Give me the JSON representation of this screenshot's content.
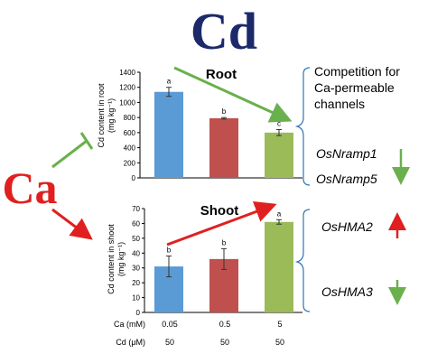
{
  "title": "Cd",
  "ca_label": "Ca",
  "colors": {
    "cd_title": "#1c2a6b",
    "ca_label": "#e02020",
    "blue": "#5b9bd5",
    "red": "#c0504d",
    "green": "#9bbb59",
    "arrow_green": "#6ab04c",
    "arrow_red": "#e02020",
    "brace": "#2e75b6"
  },
  "root_panel": {
    "label": "Root",
    "ylabel_line1": "Cd content in root",
    "ylabel_line2": "(mg kg⁻¹)"
  },
  "shoot_panel": {
    "label": "Shoot",
    "ylabel_line1": "Cd content in shoot",
    "ylabel_line2": "(mg kg⁻¹)"
  },
  "conditions": {
    "ca_label": "Ca (mM)",
    "cd_label": "Cd (μM)",
    "ca_values": [
      "0.05",
      "0.5",
      "5"
    ],
    "cd_values": [
      "50",
      "50",
      "50"
    ]
  },
  "annotations": {
    "competition_line1": "Competition for",
    "competition_line2": "Ca-permeable",
    "competition_line3": "channels",
    "gene1": "OsNramp1",
    "gene1_dir": "down",
    "gene2": "OsNramp5",
    "gene2_dir": "down",
    "gene3": "OsHMA2",
    "gene3_dir": "up",
    "gene4": "OsHMA3",
    "gene4_dir": "down"
  },
  "chart_data": [
    {
      "type": "bar",
      "title": "Root",
      "ylabel": "Cd content in root (mg kg⁻¹)",
      "categories": [
        "0.05",
        "0.5",
        "5"
      ],
      "values": [
        1140,
        790,
        600
      ],
      "errors": [
        60,
        10,
        40
      ],
      "letters": [
        "a",
        "b",
        "c"
      ],
      "ylim": [
        0,
        1400
      ],
      "yticks": [
        0,
        200,
        400,
        600,
        800,
        1000,
        1200,
        1400
      ],
      "colors": [
        "#5b9bd5",
        "#c0504d",
        "#9bbb59"
      ]
    },
    {
      "type": "bar",
      "title": "Shoot",
      "ylabel": "Cd content in shoot (mg kg⁻¹)",
      "categories": [
        "0.05",
        "0.5",
        "5"
      ],
      "values": [
        31,
        36,
        61
      ],
      "errors": [
        7,
        7,
        1.5
      ],
      "letters": [
        "b",
        "b",
        "a"
      ],
      "ylim": [
        0,
        70
      ],
      "yticks": [
        0,
        10,
        20,
        30,
        40,
        50,
        60,
        70
      ],
      "colors": [
        "#5b9bd5",
        "#c0504d",
        "#9bbb59"
      ]
    }
  ]
}
